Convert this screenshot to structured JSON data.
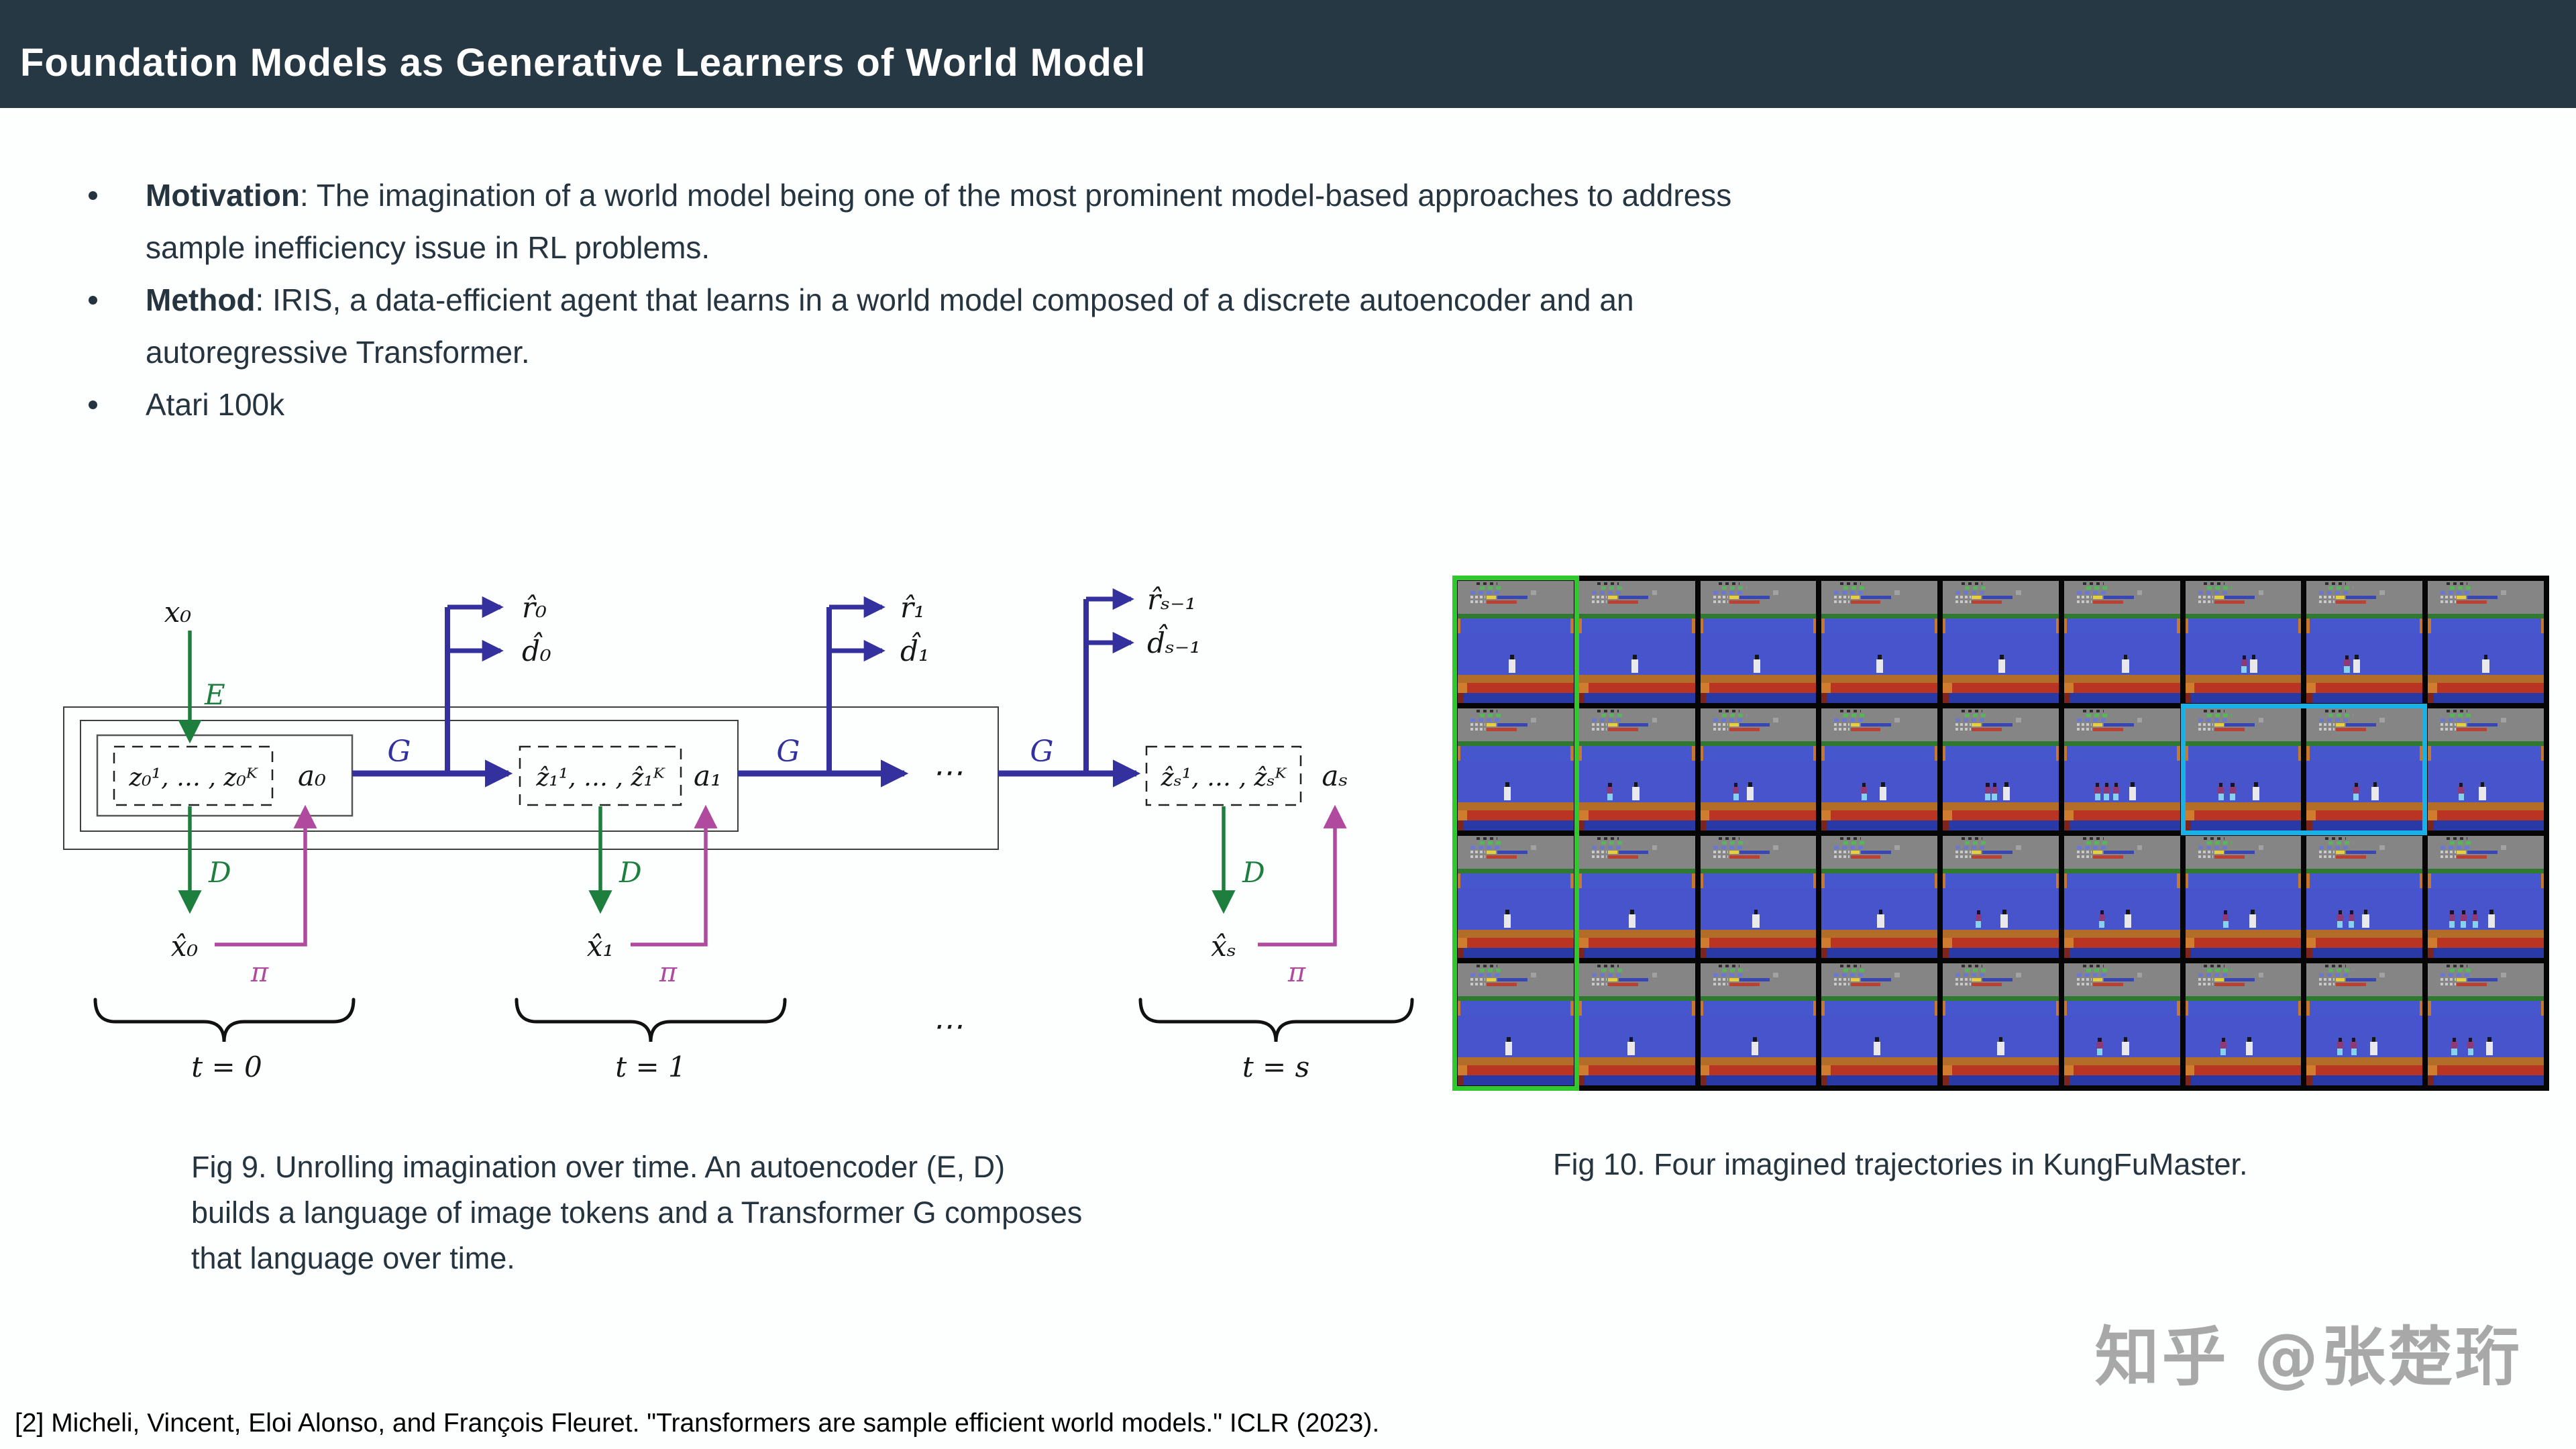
{
  "header": {
    "title": "Foundation Models as Generative Learners of World Model"
  },
  "colors": {
    "header_bg": "#273845",
    "text": "#26343f",
    "green": "#1e7e3e",
    "blue": "#34309e",
    "magenta": "#b04a9e",
    "hl_green": "#2dc92d",
    "hl_cyan": "#18b2e8",
    "watermark": "#a8a8a8"
  },
  "bullets": [
    {
      "bold": "Motivation",
      "rest": ": The imagination of a world model being one of the most prominent model-based approaches to address",
      "line2": "sample inefficiency issue in RL problems."
    },
    {
      "bold": "Method",
      "rest": ": IRIS, a data-efficient agent that learns in a world model composed of a discrete autoencoder and an",
      "line2": "autoregressive Transformer."
    },
    {
      "bold": "",
      "rest": "Atari 100k",
      "line2": ""
    }
  ],
  "diagram": {
    "labels": {
      "x0": "x₀",
      "E": "E",
      "z0": "z₀¹, … , z₀ᴷ",
      "a0": "a₀",
      "G": "G",
      "r0": "r̂₀",
      "d0": "d̂₀",
      "z1": "ẑ₁¹, … , ẑ₁ᴷ",
      "a1": "a₁",
      "r1": "r̂₁",
      "d1": "d̂₁",
      "dots": "⋯",
      "rs": "r̂ₛ₋₁",
      "ds": "d̂ₛ₋₁",
      "zs": "ẑₛ¹, … , ẑₛᴷ",
      "as": "aₛ",
      "D": "D",
      "x0hat": "x̂₀",
      "x1hat": "x̂₁",
      "xshat": "x̂ₛ",
      "pi": "π",
      "t0": "t = 0",
      "t1": "t = 1",
      "ts": "t = s"
    }
  },
  "figures": {
    "fig9_caption_lines": [
      "Fig 9. Unrolling imagination over time.  An autoencoder (E, D)",
      "builds a language of image tokens and a Transformer G composes",
      "that language over time."
    ],
    "fig10_caption": "Fig 10. Four imagined trajectories in KungFuMaster."
  },
  "atari": {
    "game": "KungFuMaster",
    "rows": 4,
    "cols": 9,
    "green_highlight": {
      "col": 1
    },
    "cyan_highlight": {
      "row": 2,
      "cols": [
        7,
        8
      ]
    },
    "frames": [
      [
        {
          "f": 44,
          "e": []
        },
        {
          "f": 45,
          "e": []
        },
        {
          "f": 46,
          "e": []
        },
        {
          "f": 47,
          "e": []
        },
        {
          "f": 48,
          "e": []
        },
        {
          "f": 50,
          "e": []
        },
        {
          "f": 56,
          "e": [
            48
          ]
        },
        {
          "f": 40,
          "e": [
            32
          ]
        },
        {
          "f": 47,
          "e": []
        }
      ],
      [
        {
          "f": 40,
          "e": []
        },
        {
          "f": 46,
          "e": [
            24
          ]
        },
        {
          "f": 40,
          "e": [
            28
          ]
        },
        {
          "f": 50,
          "e": [
            34
          ]
        },
        {
          "f": 52,
          "e": [
            36,
            42
          ]
        },
        {
          "f": 56,
          "e": [
            26,
            34,
            42
          ]
        },
        {
          "f": 58,
          "e": [
            28,
            38
          ]
        },
        {
          "f": 56,
          "e": [
            40
          ]
        },
        {
          "f": 44,
          "e": [
            26
          ]
        }
      ],
      [
        {
          "f": 40,
          "e": []
        },
        {
          "f": 43,
          "e": []
        },
        {
          "f": 45,
          "e": []
        },
        {
          "f": 48,
          "e": []
        },
        {
          "f": 50,
          "e": [
            28
          ]
        },
        {
          "f": 52,
          "e": [
            30
          ]
        },
        {
          "f": 55,
          "e": [
            32
          ]
        },
        {
          "f": 48,
          "e": [
            26,
            36
          ]
        },
        {
          "f": 52,
          "e": [
            18,
            28,
            38
          ]
        }
      ],
      [
        {
          "f": 41,
          "e": []
        },
        {
          "f": 42,
          "e": []
        },
        {
          "f": 44,
          "e": []
        },
        {
          "f": 45,
          "e": []
        },
        {
          "f": 47,
          "e": []
        },
        {
          "f": 50,
          "e": [
            28
          ]
        },
        {
          "f": 52,
          "e": [
            30
          ]
        },
        {
          "f": 55,
          "e": [
            26,
            38
          ]
        },
        {
          "f": 50,
          "e": [
            20,
            34
          ]
        }
      ]
    ]
  },
  "watermark": "知乎 @张楚珩",
  "citation": "[2] Micheli, Vincent, Eloi Alonso, and François Fleuret. \"Transformers are sample efficient world models.\" ICLR (2023)."
}
